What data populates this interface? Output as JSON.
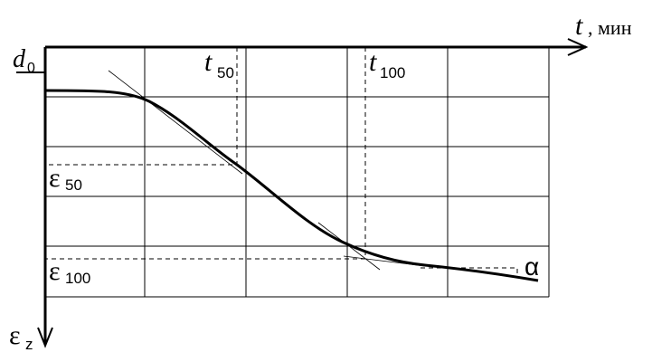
{
  "labels": {
    "time_axis": {
      "symbol": "t",
      "unit": ", мин"
    },
    "d0": {
      "symbol": "d",
      "sub": "0"
    },
    "t50": {
      "symbol": "t",
      "sub": "50"
    },
    "t100": {
      "symbol": "t",
      "sub": "100"
    },
    "eps50": {
      "symbol": "ε",
      "sub": "50"
    },
    "eps100": {
      "symbol": "ε",
      "sub": "100"
    },
    "eps_axis": {
      "symbol": "ε",
      "sub": "z"
    },
    "alpha": "α"
  }
}
